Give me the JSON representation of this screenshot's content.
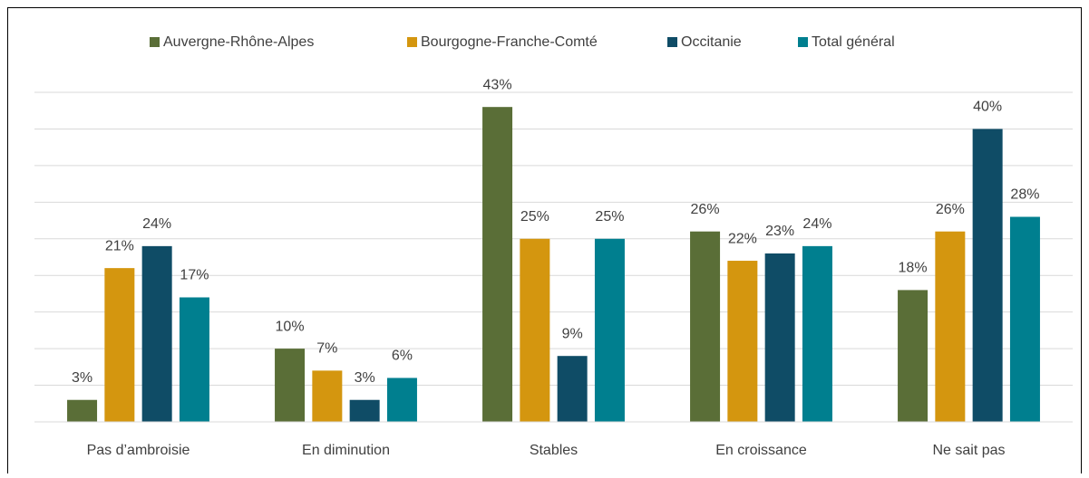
{
  "chart_data": {
    "type": "bar",
    "categories": [
      "Pas d’ambroisie",
      "En diminution",
      "Stables",
      "En croissance",
      "Ne sait pas"
    ],
    "series": [
      {
        "name": "Auvergne-Rhône-Alpes",
        "color": "#5a6e37",
        "values": [
          3,
          10,
          43,
          26,
          18
        ]
      },
      {
        "name": "Bourgogne-Franche-Comté",
        "color": "#d4960f",
        "values": [
          21,
          7,
          25,
          22,
          26
        ]
      },
      {
        "name": "Occitanie",
        "color": "#0f4c66",
        "values": [
          24,
          3,
          9,
          23,
          40
        ]
      },
      {
        "name": "Total général",
        "color": "#007f8f",
        "values": [
          17,
          6,
          25,
          24,
          28
        ]
      }
    ],
    "value_labels": [
      [
        "3%",
        "10%",
        "43%",
        "26%",
        "18%"
      ],
      [
        "21%",
        "7%",
        "25%",
        "22%",
        "26%"
      ],
      [
        "24%",
        "3%",
        "9%",
        "23%",
        "40%"
      ],
      [
        "17%",
        "6%",
        "25%",
        "24%",
        "28%"
      ]
    ],
    "ylim": [
      0,
      45
    ],
    "legend": "top"
  }
}
